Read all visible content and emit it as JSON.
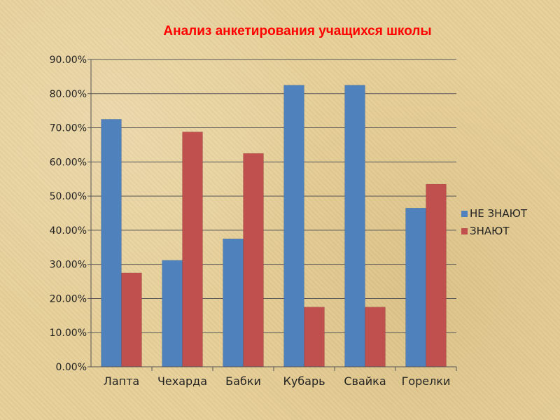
{
  "chart_data": {
    "type": "bar",
    "title": "Анализ анкетирования учащихся школы",
    "categories": [
      "Лапта",
      "Чехарда",
      "Бабки",
      "Кубарь",
      "Свайка",
      "Горелки"
    ],
    "series": [
      {
        "name": "НЕ ЗНАЮТ",
        "color": "#4f81bd",
        "values": [
          72.5,
          31.2,
          37.5,
          82.5,
          82.5,
          46.5
        ]
      },
      {
        "name": "ЗНАЮТ",
        "color": "#c0504d",
        "values": [
          27.5,
          68.8,
          62.5,
          17.5,
          17.5,
          53.5
        ]
      }
    ],
    "ylim": [
      0,
      90
    ],
    "yticks": [
      "0.00%",
      "10.00%",
      "20.00%",
      "30.00%",
      "40.00%",
      "50.00%",
      "60.00%",
      "70.00%",
      "80.00%",
      "90.00%"
    ],
    "grid": true,
    "legend_position": "right"
  }
}
